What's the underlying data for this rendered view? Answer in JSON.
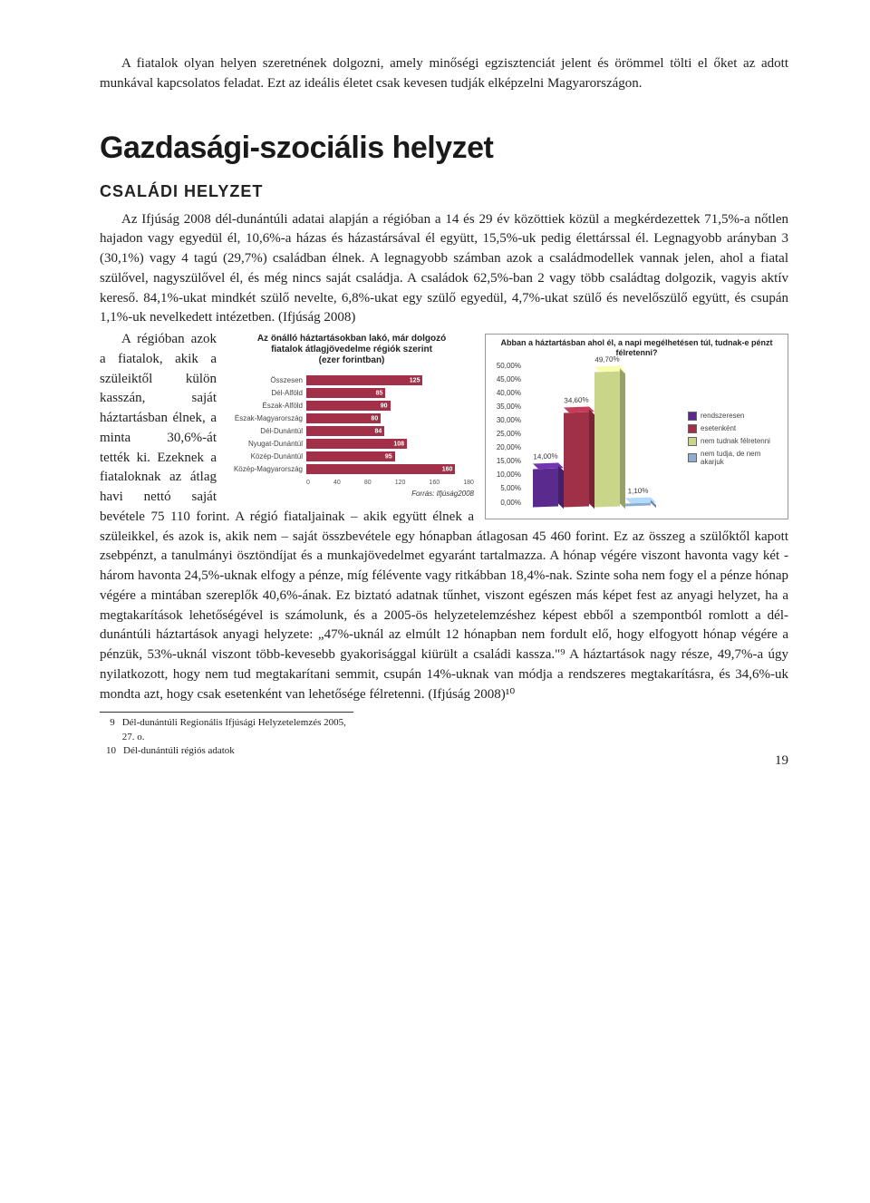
{
  "intro_paragraph": "A fiatalok olyan helyen szeretnének dolgozni, amely minőségi egzisztenciát jelent és örömmel tölti el őket az adott munkával kapcsolatos feladat. Ezt az ideális életet csak kevesen tudják elképzelni Magyarországon.",
  "section_title": "Gazdasági-szociális helyzet",
  "subsection_title": "CSALÁDI HELYZET",
  "para1": "Az Ifjúság 2008 dél-dunántúli adatai alapján a régióban a 14 és 29 év közöttiek közül a megkérdezettek 71,5%-a nőtlen hajadon vagy egyedül él, 10,6%-a házas és házastársával él együtt, 15,5%-uk pedig élettárssal él. Legnagyobb arányban 3 (30,1%) vagy 4 tagú (29,7%) családban élnek. A legnagyobb számban azok a családmodellek vannak jelen, ahol a fiatal szülővel, nagyszülővel él, és még nincs saját családja. A családok 62,5%-ban 2 vagy több családtag dolgozik, vagyis aktív kereső. 84,1%-ukat mindkét szülő nevelte, 6,8%-ukat egy szülő egyedül, 4,7%-ukat szülő és nevelőszülő együtt, és csupán 1,1%-uk nevelkedett intézetben. (Ifjúság 2008)",
  "para2a": "A régióban azok a fiatalok, akik a szüleiktől külön kasszán, saját háztartásban élnek, a minta 30,6%-át tették ki. Ezeknek a fiataloknak az átlag havi nettó saját bevétele 75 110 forint. A régió fiataljainak – akik együtt élnek a szüleikkel, és azok is, akik nem – saját összbevétele egy hónapban átlagosan 45 460 forint. Ez az összeg a szülőktől kapott zsebpénzt, a tanulmányi ösztöndíjat és a munkajövedelmet egyaránt tartalmazza. A hónap végére viszont havonta vagy két - három havonta 24,5%-uknak elfogy a pénze, míg félévente vagy ritkábban 18,4%-nak. Szinte soha nem fogy el a pénze hónap végére a mintában szereplők 40,6%-ának. Ez biztató adatnak tűnhet, viszont egészen más képet fest az anyagi helyzet, ha a megtakarítások lehetőségével is számolunk, és a 2005-ös helyzetelemzéshez képest ebből a szempontból romlott a dél-dunántúli háztartások anyagi helyzete: „47%-uknál az elmúlt 12 hónapban nem fordult elő, hogy elfogyott hónap végére a pénzük, 53%-uknál viszont több-kevesebb gyakorisággal kiürült a családi kassza.\"⁹ A háztartások nagy része, 49,7%-a úgy nyilatkozott, hogy nem tud megtakarítani semmit, csupán 14%-uknak van módja a rendszeres megtakarításra, és 34,6%-uk mondta azt, hogy csak esetenként van lehetősége félretenni. (Ifjúság 2008)¹⁰",
  "chart1": {
    "title": "Abban a háztartásban ahol él, a napi megélhetésen túl, tudnak-e pénzt félretenni?",
    "type": "bar",
    "y_ticks": [
      "0,00%",
      "5,00%",
      "10,00%",
      "15,00%",
      "20,00%",
      "25,00%",
      "30,00%",
      "35,00%",
      "40,00%",
      "45,00%",
      "50,00%"
    ],
    "ylim": [
      0,
      50
    ],
    "bars": [
      {
        "label": "14,00%",
        "value": 14.0,
        "color": "#5b2a8e"
      },
      {
        "label": "34,60%",
        "value": 34.6,
        "color": "#a03048"
      },
      {
        "label": "49,70%",
        "value": 49.7,
        "color": "#c9d68a"
      },
      {
        "label": "1,10%",
        "value": 1.1,
        "color": "#8faecf"
      }
    ],
    "legend": [
      {
        "label": "rendszeresen",
        "color": "#5b2a8e"
      },
      {
        "label": "esetenként",
        "color": "#a03048"
      },
      {
        "label": "nem tudnak félretenni",
        "color": "#c9d68a"
      },
      {
        "label": "nem tudja, de nem akarjuk",
        "color": "#8faecf"
      }
    ],
    "background_color": "#ffffff",
    "grid_color": "#e0e0e0",
    "title_fontsize": 9,
    "label_fontsize": 8
  },
  "chart2": {
    "title_line1": "Az önálló háztartásokban lakó, már dolgozó",
    "title_line2": "fiatalok átlagjövedelme régiók szerint",
    "title_line3": "(ezer forintban)",
    "type": "hbar",
    "xlim": [
      0,
      180
    ],
    "xticks": [
      "0",
      "40",
      "80",
      "120",
      "160",
      "180"
    ],
    "rows": [
      {
        "label": "Összesen",
        "value": 125,
        "color": "#a23048"
      },
      {
        "label": "Dél-Alföld",
        "value": 85,
        "color": "#a23048"
      },
      {
        "label": "Észak-Alföld",
        "value": 90,
        "color": "#a23048"
      },
      {
        "label": "Észak-Magyarország",
        "value": 80,
        "color": "#a23048"
      },
      {
        "label": "Dél-Dunántúl",
        "value": 84,
        "color": "#a23048"
      },
      {
        "label": "Nyugat-Dunántúl",
        "value": 108,
        "color": "#a23048"
      },
      {
        "label": "Közép-Dunántúl",
        "value": 95,
        "color": "#a23048"
      },
      {
        "label": "Közép-Magyarország",
        "value": 160,
        "color": "#a23048"
      }
    ],
    "source": "Forrás: Ifjúság2008",
    "title_fontsize": 10
  },
  "footnotes": [
    {
      "num": "9",
      "text": "Dél-dunántúli Regionális Ifjúsági Helyzetelemzés 2005, 27. o."
    },
    {
      "num": "10",
      "text": "Dél-dunántúli régiós adatok"
    }
  ],
  "page_number": "19"
}
